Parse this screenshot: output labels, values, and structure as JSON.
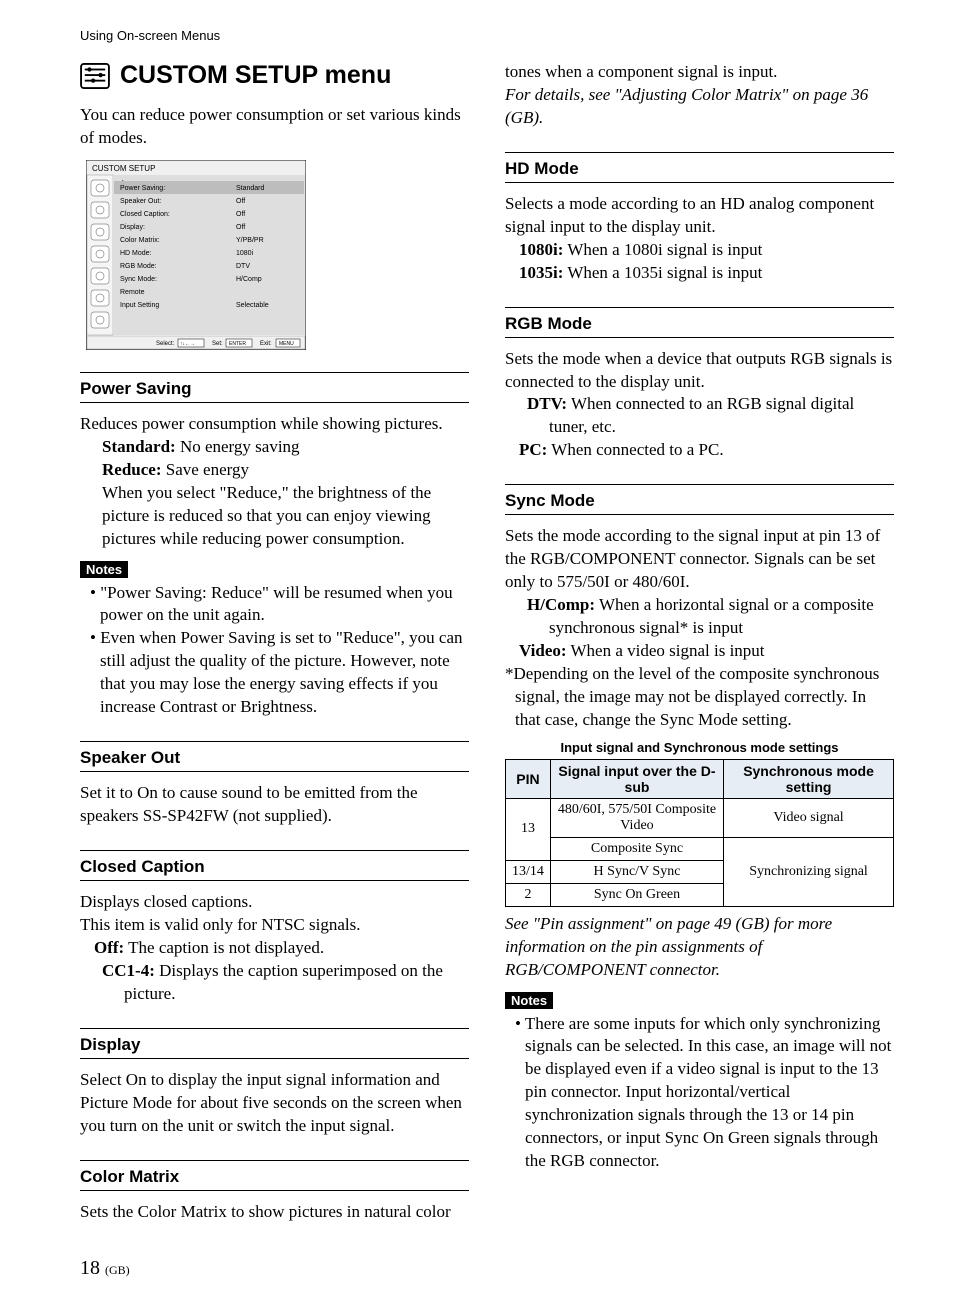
{
  "header": {
    "breadcrumb": "Using On-screen Menus"
  },
  "title": {
    "text": "CUSTOM SETUP menu"
  },
  "intro": "You can reduce power consumption or set various kinds of modes.",
  "screenshot": {
    "title": "CUSTOM SETUP",
    "rows": [
      {
        "label": "Power Saving:",
        "value": "Standard"
      },
      {
        "label": "Speaker Out:",
        "value": "Off"
      },
      {
        "label": "Closed Caption:",
        "value": "Off"
      },
      {
        "label": "Display:",
        "value": "Off"
      },
      {
        "label": "Color Matrix:",
        "value": "Y/PB/PR"
      },
      {
        "label": "HD Mode:",
        "value": "1080i"
      },
      {
        "label": "RGB Mode:",
        "value": "DTV"
      },
      {
        "label": "Sync Mode:",
        "value": "H/Comp"
      },
      {
        "label": "Remote",
        "value": ""
      },
      {
        "label": "Input Setting",
        "value": "Selectable"
      }
    ],
    "footer_select": "Select:",
    "footer_set": "Set:",
    "footer_set_btn": "ENTER",
    "footer_exit": "Exit:",
    "footer_exit_btn": "MENU",
    "bg": "#dedede",
    "row_highlight": "#bdbdbd",
    "border": "#000000",
    "font_size": 7
  },
  "left": {
    "power_saving": {
      "head": "Power Saving",
      "lead": "Reduces power consumption while showing pictures.",
      "standard_label": "Standard:",
      "standard_text": " No energy saving",
      "reduce_label": "Reduce:",
      "reduce_text": " Save energy",
      "reduce_detail": "When you select \"Reduce,\" the brightness of the picture is reduced so that you can enjoy viewing pictures while reducing power consumption.",
      "notes_label": "Notes",
      "note1": "\"Power Saving: Reduce\" will be resumed when you power on the unit again.",
      "note2": "Even when Power Saving is set to \"Reduce\", you can still adjust the quality of the picture. However, note that you may lose the energy saving effects if you increase Contrast or Brightness."
    },
    "speaker_out": {
      "head": "Speaker Out",
      "text": "Set it to On to cause sound to be emitted from the speakers SS-SP42FW (not supplied)."
    },
    "closed_caption": {
      "head": "Closed Caption",
      "line1": "Displays closed captions.",
      "line2": "This item is valid only for NTSC signals.",
      "off_label": "Off:",
      "off_text": " The caption is not displayed.",
      "cc_label": "CC1-4:",
      "cc_text": " Displays the caption superimposed on the picture."
    },
    "display": {
      "head": "Display",
      "text": "Select On to display the input signal information and Picture Mode for about five seconds on the screen when you turn on the unit or switch the input signal."
    },
    "color_matrix": {
      "head": "Color Matrix",
      "text": "Sets the Color Matrix to show pictures in natural color"
    }
  },
  "right": {
    "color_matrix_cont": {
      "line1": "tones when a component signal is input.",
      "line2": "For details, see \"Adjusting Color Matrix\" on page 36 (GB)."
    },
    "hd_mode": {
      "head": "HD Mode",
      "lead": "Selects a mode according to an HD analog component signal input to the display unit.",
      "opt1_label": "1080i:",
      "opt1_text": " When a 1080i signal is input",
      "opt2_label": "1035i:",
      "opt2_text": " When a 1035i signal is input"
    },
    "rgb_mode": {
      "head": "RGB Mode",
      "lead": "Sets the mode when a device that outputs RGB signals is connected to the display unit.",
      "opt1_label": "DTV:",
      "opt1_text": " When connected to an RGB signal digital tuner, etc.",
      "opt2_label": "PC:",
      "opt2_text": " When connected to a PC."
    },
    "sync_mode": {
      "head": "Sync Mode",
      "lead": "Sets the mode according to the signal input at pin 13 of the RGB/COMPONENT connector. Signals can be set only to 575/50I or 480/60I.",
      "opt1_label": "H/Comp:",
      "opt1_text": " When a horizontal signal or a composite synchronous signal* is input",
      "opt2_label": "Video:",
      "opt2_text": " When a video signal is input",
      "footnote": "*Depending on the level of the composite synchronous signal, the image may not be displayed correctly. In that case, change the Sync Mode setting.",
      "table_caption": "Input signal and Synchronous mode settings",
      "table": {
        "head_pin": "PIN",
        "head_signal": "Signal input over the D-sub",
        "head_sync": "Synchronous mode setting",
        "r1_pin": "13",
        "r1_sig": "480/60I, 575/50I Composite Video",
        "r1_sync": "Video signal",
        "r2_sig": "Composite Sync",
        "r3_pin": "13/14",
        "r3_sig": "H Sync/V Sync",
        "r4_pin": "2",
        "r4_sig": "Sync On Green",
        "r234_sync": "Synchronizing signal"
      },
      "see": "See \"Pin assignment\" on page 49 (GB) for more information on the pin assignments of RGB/COMPONENT connector.",
      "notes_label": "Notes",
      "note1": "There are some inputs for which only synchronizing signals can be selected. In this case, an image will not be displayed even if a video signal is input to the 13 pin connector. Input horizontal/vertical synchronization signals through the 13 or 14 pin connectors, or input Sync On Green signals through the RGB connector."
    }
  },
  "footer": {
    "page": "18",
    "suffix": "(GB)"
  }
}
